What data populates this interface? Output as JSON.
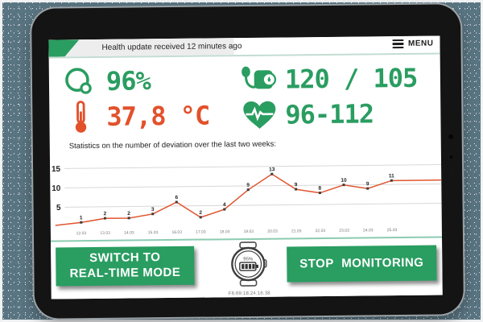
{
  "topbar": {
    "status_text": "Health update received 12 minutes ago",
    "menu_label": "MENU"
  },
  "stats": {
    "oxygen": {
      "value": "96%"
    },
    "blood_pressure": {
      "value": "120 / 105"
    },
    "temperature": {
      "value": "37,8 °C"
    },
    "pulse": {
      "value": "96-112"
    }
  },
  "chart_data": {
    "type": "line",
    "title": "Statistics on the number of deviation over the last two weeks:",
    "categories": [
      "12.03",
      "13.03",
      "14.03",
      "15.03",
      "16.03",
      "17.03",
      "18.03",
      "19.03",
      "20.03",
      "21.03",
      "22.03",
      "23.03",
      "24.03",
      "25.03"
    ],
    "values": [
      1,
      2,
      2,
      3,
      6,
      2,
      4,
      9,
      13,
      9,
      8,
      10,
      9,
      11
    ],
    "xlabel": "",
    "ylabel": "",
    "yticks": [
      5,
      10,
      15
    ],
    "ylim": [
      0,
      16
    ],
    "grid": true,
    "legend": false,
    "line_color": "#e0552f",
    "point_color": "#3b3b3b",
    "point_labels": true
  },
  "footer": {
    "switch_line1": "SWITCH TO",
    "switch_line2": "REAL-TIME MODE",
    "stop_label": "STOP MONITORING",
    "watch_battery": "95%",
    "watch_id": "F6:69:18:24:16:38"
  },
  "colors": {
    "green": "#2a9d61",
    "orange": "#e2512b",
    "chart_line": "#e0552f",
    "topbar_gray": "#ededed",
    "separator_teal": "#8ccbb1",
    "background_slate": "#5a7582"
  }
}
